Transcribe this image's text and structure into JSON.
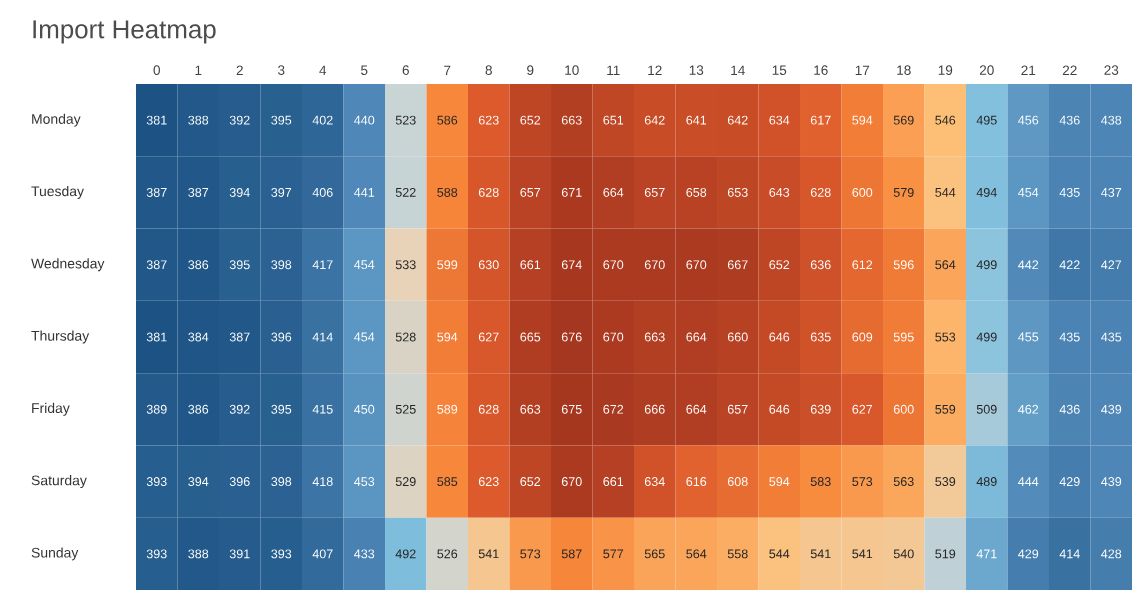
{
  "chart_data": {
    "type": "heatmap",
    "title": "Import Heatmap",
    "data_labels": true,
    "categories": [
      "0",
      "1",
      "2",
      "3",
      "4",
      "5",
      "6",
      "7",
      "8",
      "9",
      "10",
      "11",
      "12",
      "13",
      "14",
      "15",
      "16",
      "17",
      "18",
      "19",
      "20",
      "21",
      "22",
      "23"
    ],
    "y_categories": [
      "Monday",
      "Tuesday",
      "Wednesday",
      "Thursday",
      "Friday",
      "Saturday",
      "Sunday"
    ],
    "cells": [
      [
        381,
        388,
        392,
        395,
        402,
        440,
        523,
        586,
        623,
        652,
        663,
        651,
        642,
        641,
        642,
        634,
        617,
        594,
        569,
        546,
        495,
        456,
        436,
        438
      ],
      [
        387,
        387,
        394,
        397,
        406,
        441,
        522,
        588,
        628,
        657,
        671,
        664,
        657,
        658,
        653,
        643,
        628,
        600,
        579,
        544,
        494,
        454,
        435,
        437
      ],
      [
        387,
        386,
        395,
        398,
        417,
        454,
        533,
        599,
        630,
        661,
        674,
        670,
        670,
        670,
        667,
        652,
        636,
        612,
        596,
        564,
        499,
        442,
        422,
        427
      ],
      [
        381,
        384,
        387,
        396,
        414,
        454,
        528,
        594,
        627,
        665,
        676,
        670,
        663,
        664,
        660,
        646,
        635,
        609,
        595,
        553,
        499,
        455,
        435,
        435
      ],
      [
        389,
        386,
        392,
        395,
        415,
        450,
        525,
        589,
        628,
        663,
        675,
        672,
        666,
        664,
        657,
        646,
        639,
        627,
        600,
        559,
        509,
        462,
        436,
        439
      ],
      [
        393,
        394,
        396,
        398,
        418,
        453,
        529,
        585,
        623,
        652,
        670,
        661,
        634,
        616,
        608,
        594,
        583,
        573,
        563,
        539,
        489,
        444,
        429,
        439
      ],
      [
        393,
        388,
        391,
        393,
        407,
        433,
        492,
        526,
        541,
        573,
        587,
        577,
        565,
        564,
        558,
        544,
        541,
        541,
        540,
        519,
        471,
        429,
        414,
        428
      ]
    ]
  }
}
